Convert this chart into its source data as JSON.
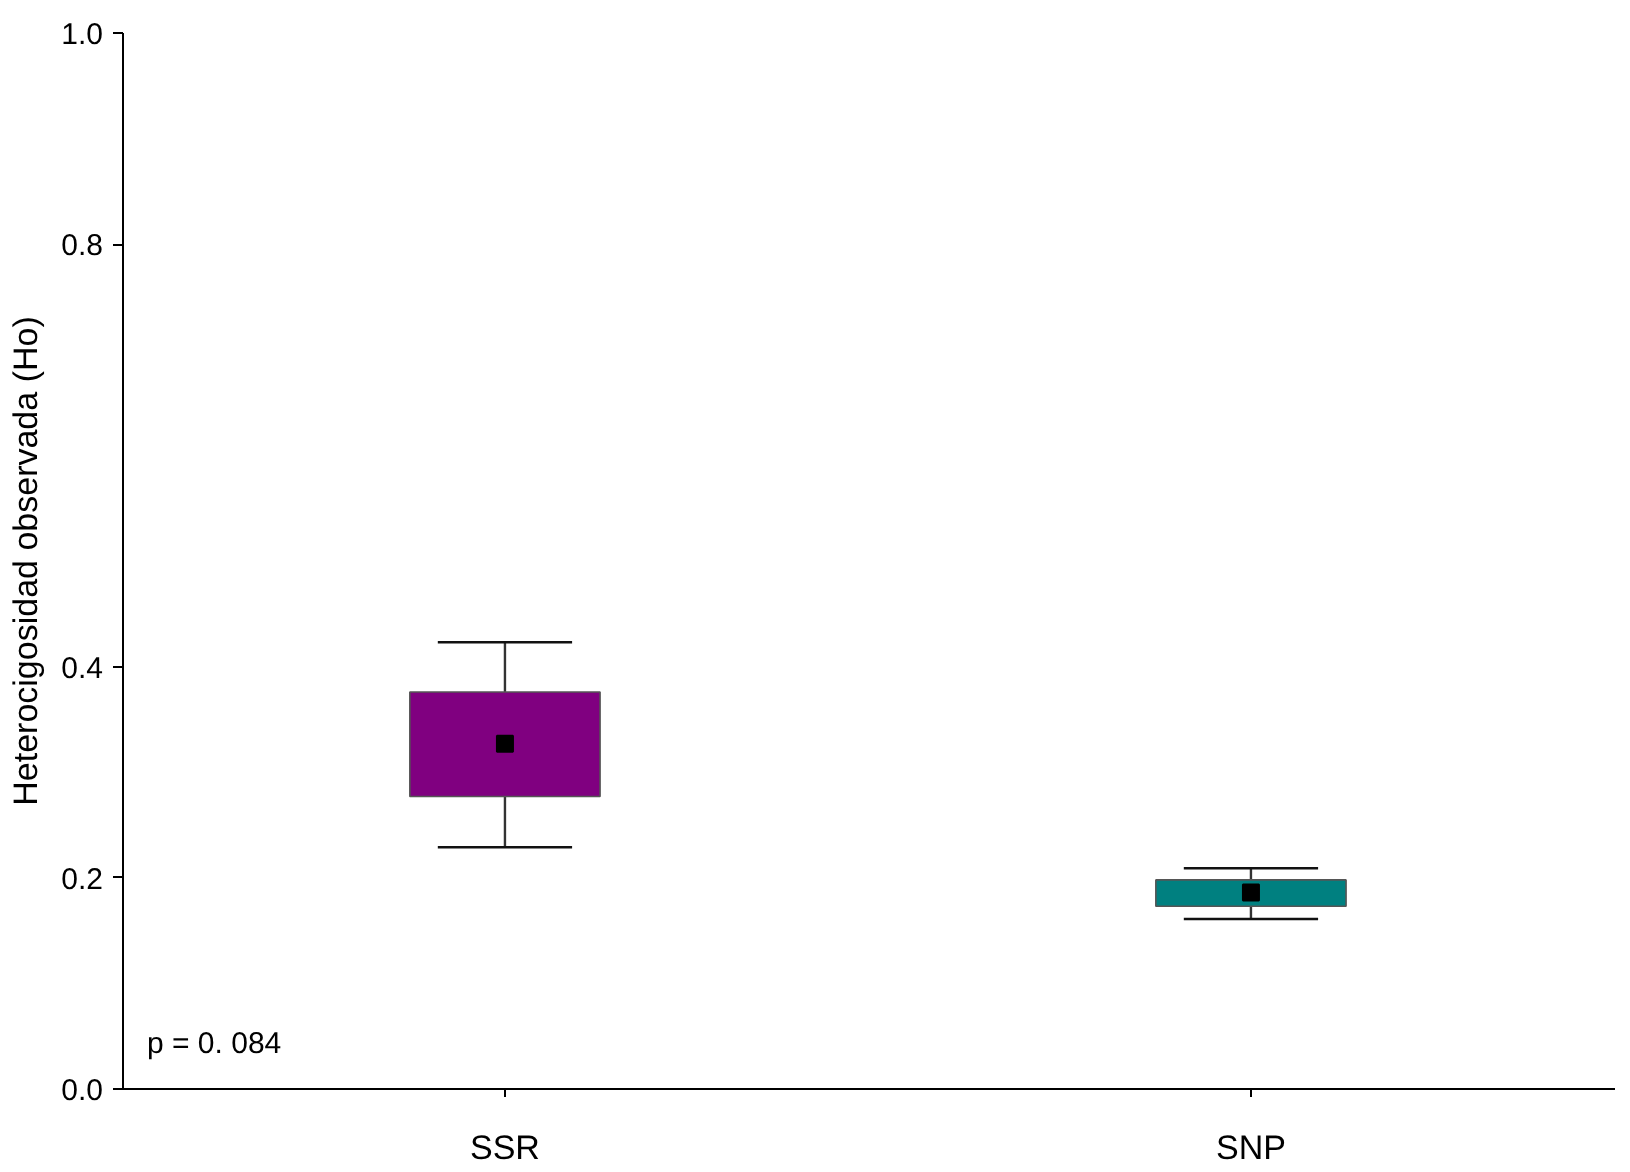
{
  "chart_data": {
    "type": "box",
    "categories": [
      "SSR",
      "SNP"
    ],
    "ylabel": "Heterocigosidad observada (Ho)",
    "ylim": [
      0,
      1.0
    ],
    "yticks": [
      {
        "value": 0,
        "label": "0.0"
      },
      {
        "value": 0.2,
        "label": "0.2"
      },
      {
        "value": 0.4,
        "label": "0.4"
      },
      {
        "value": 0.8,
        "label": "0.8"
      },
      {
        "value": 1.0,
        "label": "1.0"
      }
    ],
    "grid": false,
    "colors": [
      "#800080",
      "#008080"
    ],
    "boxes": [
      {
        "low": 0.229,
        "q1": 0.277,
        "q3": 0.376,
        "high": 0.423,
        "mean": 0.327
      },
      {
        "low": 0.161,
        "q1": 0.173,
        "q3": 0.198,
        "high": 0.209,
        "mean": 0.186
      }
    ],
    "annotations": [
      "p = 0. 084"
    ]
  }
}
